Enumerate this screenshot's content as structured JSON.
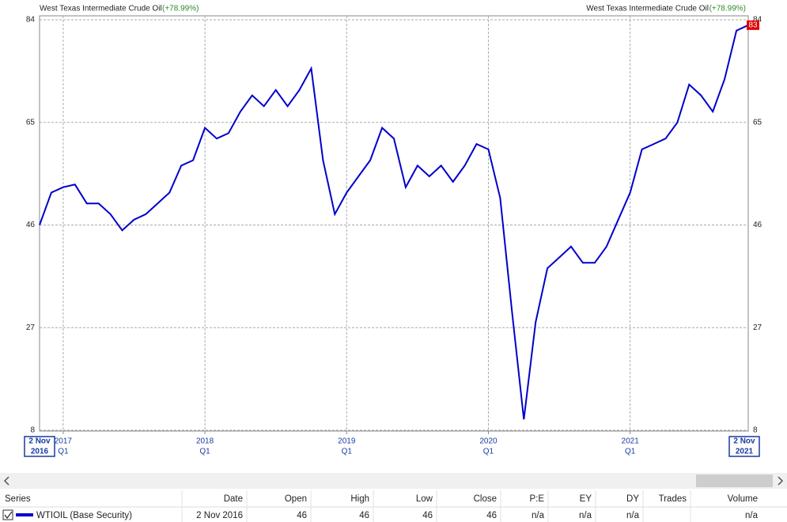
{
  "chart_data": {
    "type": "line",
    "title": "West Texas Intermediate Crude Oil",
    "subtitle": "(+78.99%)",
    "x": [
      "2016-11",
      "2016-12",
      "2017-01",
      "2017-02",
      "2017-03",
      "2017-04",
      "2017-05",
      "2017-06",
      "2017-07",
      "2017-08",
      "2017-09",
      "2017-10",
      "2017-11",
      "2017-12",
      "2018-01",
      "2018-02",
      "2018-03",
      "2018-04",
      "2018-05",
      "2018-06",
      "2018-07",
      "2018-08",
      "2018-09",
      "2018-10",
      "2018-11",
      "2018-12",
      "2019-01",
      "2019-02",
      "2019-03",
      "2019-04",
      "2019-05",
      "2019-06",
      "2019-07",
      "2019-08",
      "2019-09",
      "2019-10",
      "2019-11",
      "2019-12",
      "2020-01",
      "2020-02",
      "2020-03",
      "2020-04",
      "2020-05",
      "2020-06",
      "2020-07",
      "2020-08",
      "2020-09",
      "2020-10",
      "2020-11",
      "2020-12",
      "2021-01",
      "2021-02",
      "2021-03",
      "2021-04",
      "2021-05",
      "2021-06",
      "2021-07",
      "2021-08",
      "2021-09",
      "2021-10",
      "2021-11"
    ],
    "series": [
      {
        "name": "WTIOIL (Base Security)",
        "color": "#0000cc",
        "values": [
          46,
          52,
          53,
          53.5,
          50,
          50,
          48,
          45,
          47,
          48,
          50,
          52,
          57,
          58,
          64,
          62,
          63,
          67,
          70,
          68,
          71,
          68,
          71,
          75,
          58,
          48,
          52,
          55,
          58,
          64,
          62,
          53,
          57,
          55,
          57,
          54,
          57,
          61,
          60,
          51,
          30,
          10,
          28,
          38,
          40,
          42,
          39,
          39,
          42,
          47,
          52,
          60,
          61,
          62,
          65,
          72,
          70,
          67,
          73,
          82,
          83
        ]
      }
    ],
    "xlim": [
      "2016-11",
      "2021-11"
    ],
    "xticks": [
      {
        "value": "2017-01",
        "label": "2017"
      },
      {
        "value": "2018-01",
        "label": "2018"
      },
      {
        "value": "2019-01",
        "label": "2019"
      },
      {
        "value": "2020-01",
        "label": "2020"
      },
      {
        "value": "2021-01",
        "label": "2021"
      }
    ],
    "quarter_label": "Q1",
    "start_label": {
      "day": "2 Nov",
      "year": "2016"
    },
    "end_label": {
      "day": "2 Nov",
      "year": "2021"
    },
    "ylim": [
      8,
      84
    ],
    "yticks": [
      8,
      27,
      46,
      65,
      84
    ],
    "grid": true
  },
  "table": {
    "columns": [
      "Series",
      "Date",
      "Open",
      "High",
      "Low",
      "Close",
      "P:E",
      "EY",
      "DY",
      "Trades",
      "Volume"
    ],
    "row": {
      "series": "WTIOIL (Base Security)",
      "date": "2 Nov 2016",
      "open": "46",
      "high": "46",
      "low": "46",
      "close": "46",
      "pe": "n/a",
      "ey": "n/a",
      "dy": "n/a",
      "volume": "n/a"
    }
  }
}
